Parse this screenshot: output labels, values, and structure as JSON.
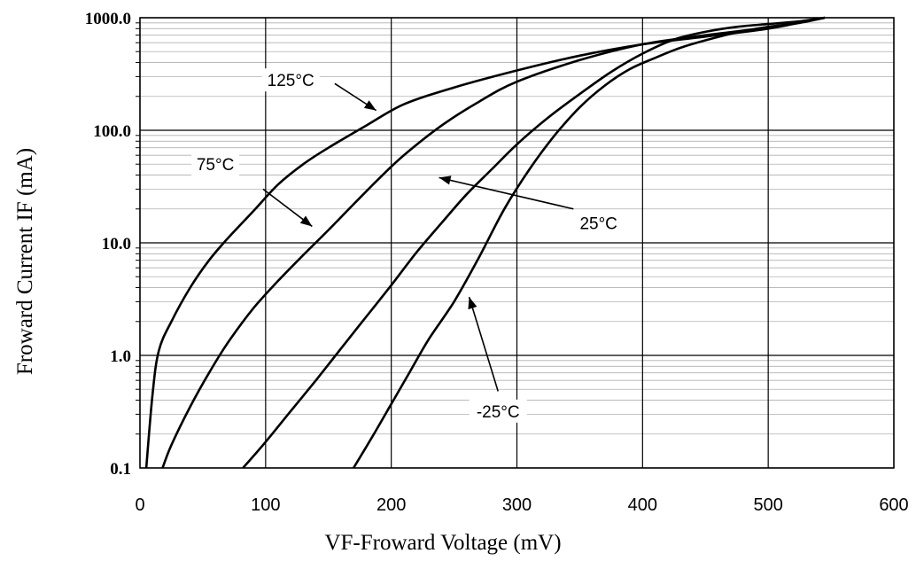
{
  "chart_data": {
    "type": "line",
    "title": "",
    "xlabel": "VF-Froward Voltage (mV)",
    "ylabel": "Froward Current IF (mA)",
    "xlim": [
      0,
      600
    ],
    "ylim": [
      0.1,
      1000
    ],
    "yscale": "log",
    "x_ticks": [
      "0",
      "100",
      "200",
      "300",
      "400",
      "500",
      "600"
    ],
    "y_ticks": [
      "0.1",
      "1.0",
      "10.0",
      "100.0",
      "1000.0"
    ],
    "grid": true,
    "series": [
      {
        "name": "125°C",
        "x": [
          5,
          10,
          15,
          25,
          40,
          55,
          70,
          90,
          110,
          130,
          150,
          180,
          210,
          250,
          300,
          350,
          400,
          450,
          500,
          530,
          545
        ],
        "y": [
          0.1,
          0.45,
          1.1,
          2.0,
          4.0,
          7.0,
          11,
          19,
          33,
          50,
          70,
          110,
          170,
          240,
          340,
          460,
          580,
          680,
          800,
          930,
          1000
        ]
      },
      {
        "name": "75°C",
        "x": [
          18,
          25,
          40,
          55,
          70,
          90,
          110,
          130,
          150,
          170,
          190,
          210,
          240,
          270,
          300,
          350,
          400,
          450,
          500,
          545
        ],
        "y": [
          0.1,
          0.16,
          0.35,
          0.7,
          1.3,
          2.6,
          4.6,
          7.8,
          13,
          22,
          37,
          60,
          110,
          180,
          270,
          420,
          580,
          700,
          820,
          1000
        ]
      },
      {
        "name": "25°C",
        "x": [
          82,
          100,
          120,
          140,
          160,
          180,
          200,
          220,
          240,
          260,
          280,
          300,
          325,
          350,
          375,
          400,
          425,
          450,
          475,
          500,
          525,
          545
        ],
        "y": [
          0.1,
          0.17,
          0.32,
          0.6,
          1.15,
          2.2,
          4.2,
          8.2,
          15,
          27,
          45,
          75,
          130,
          210,
          330,
          480,
          640,
          750,
          830,
          880,
          930,
          1000
        ]
      },
      {
        "name": "-25°C",
        "x": [
          170,
          185,
          200,
          215,
          230,
          250,
          270,
          290,
          310,
          330,
          350,
          370,
          390,
          410,
          430,
          450,
          475,
          500,
          525,
          545
        ],
        "y": [
          0.1,
          0.19,
          0.37,
          0.72,
          1.4,
          3.0,
          7.5,
          20,
          45,
          90,
          160,
          250,
          350,
          440,
          540,
          630,
          740,
          830,
          900,
          1000
        ]
      }
    ],
    "annotations": [
      {
        "text": "125°C",
        "series": "125°C"
      },
      {
        "text": "75°C",
        "series": "75°C"
      },
      {
        "text": "25°C",
        "series": "25°C"
      },
      {
        "text": "-25°C",
        "series": "-25°C"
      }
    ]
  }
}
